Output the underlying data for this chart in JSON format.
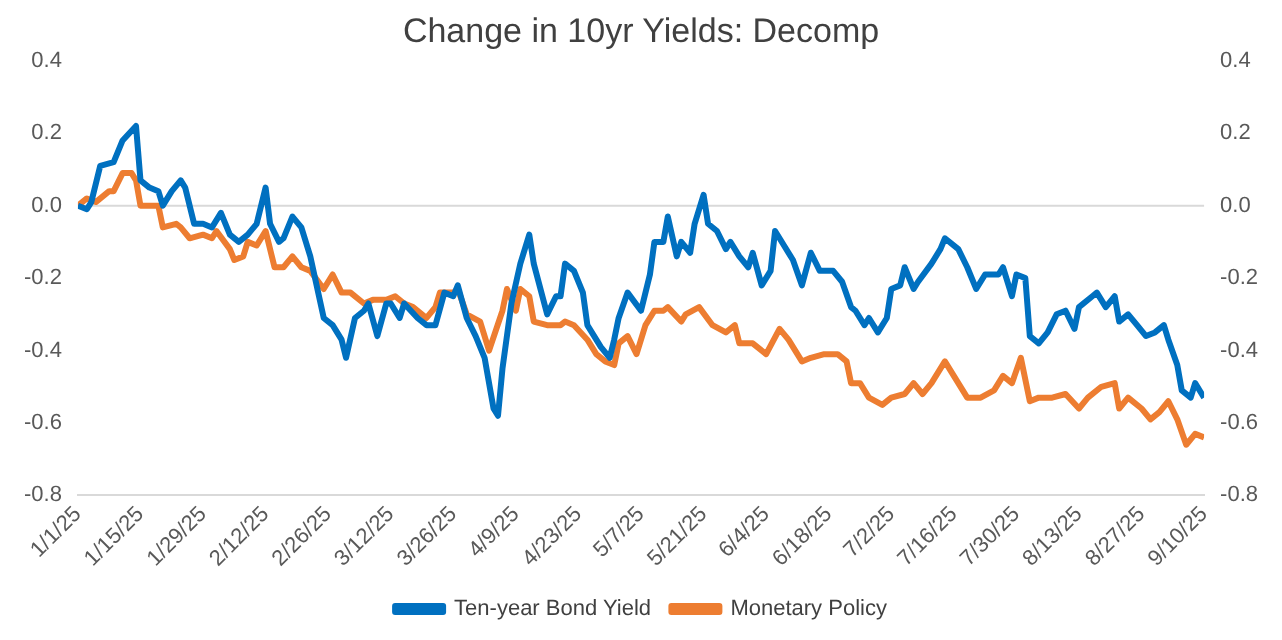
{
  "chart_data": {
    "type": "line",
    "title": "Change in 10yr Yields: Decomp",
    "xlim": [
      "--01-01",
      "--09-10"
    ],
    "xticks": [
      {
        "value": "--01-01",
        "label": "1/1/25"
      },
      {
        "value": "--01-15",
        "label": "1/15/25"
      },
      {
        "value": "--01-29",
        "label": "1/29/25"
      },
      {
        "value": "--02-12",
        "label": "2/12/25"
      },
      {
        "value": "--02-26",
        "label": "2/26/25"
      },
      {
        "value": "--03-12",
        "label": "3/12/25"
      },
      {
        "value": "--03-26",
        "label": "3/26/25"
      },
      {
        "value": "--04-09",
        "label": "4/9/25"
      },
      {
        "value": "--04-23",
        "label": "4/23/25"
      },
      {
        "value": "--05-07",
        "label": "5/7/25"
      },
      {
        "value": "--05-21",
        "label": "5/21/25"
      },
      {
        "value": "--06-04",
        "label": "6/4/25"
      },
      {
        "value": "--06-18",
        "label": "6/18/25"
      },
      {
        "value": "--07-02",
        "label": "7/2/25"
      },
      {
        "value": "--07-16",
        "label": "7/16/25"
      },
      {
        "value": "--07-30",
        "label": "7/30/25"
      },
      {
        "value": "--08-13",
        "label": "8/13/25"
      },
      {
        "value": "--08-27",
        "label": "8/27/25"
      },
      {
        "value": "--09-10",
        "label": "9/10/25"
      }
    ],
    "ylim": [
      -0.8,
      0.4
    ],
    "yticks": [
      {
        "value": -0.8,
        "label": "-0.8"
      },
      {
        "value": -0.6,
        "label": "-0.6"
      },
      {
        "value": -0.4,
        "label": "-0.4"
      },
      {
        "value": -0.2,
        "label": "-0.2"
      },
      {
        "value": 0,
        "label": "0.0"
      },
      {
        "value": 0.2,
        "label": "0.2"
      },
      {
        "value": 0.4,
        "label": "0.4"
      }
    ],
    "y2lim": [
      -0.8,
      0.4
    ],
    "y2ticks": [
      {
        "value": -0.8,
        "label": "-0.8"
      },
      {
        "value": -0.6,
        "label": "-0.6"
      },
      {
        "value": -0.4,
        "label": "-0.4"
      },
      {
        "value": -0.2,
        "label": "-0.2"
      },
      {
        "value": 0,
        "label": "0.0"
      },
      {
        "value": 0.2,
        "label": "0.2"
      },
      {
        "value": 0.4,
        "label": "0.4"
      }
    ],
    "ref_lines": [
      {
        "axis": "y",
        "value": 0,
        "color": "#d9d9d9"
      }
    ],
    "legend": "bottom",
    "marker": "none",
    "line_style": "solid",
    "series": [
      {
        "name": "Ten-year Bond Yield",
        "color": "#0070c0",
        "x": [
          "--01-01",
          "--01-03",
          "--01-04",
          "--01-06",
          "--01-09",
          "--01-11",
          "--01-14",
          "--01-15",
          "--01-17",
          "--01-19",
          "--01-20",
          "--01-22",
          "--01-24",
          "--01-25",
          "--01-27",
          "--01-29",
          "--01-31",
          "--02-02",
          "--02-04",
          "--02-06",
          "--02-08",
          "--02-10",
          "--02-12",
          "--02-13",
          "--02-15",
          "--02-16",
          "--02-18",
          "--02-20",
          "--02-22",
          "--02-25",
          "--02-27",
          "--03-01",
          "--03-02",
          "--03-04",
          "--03-06",
          "--03-07",
          "--03-09",
          "--03-11",
          "--03-12",
          "--03-14",
          "--03-15",
          "--03-18",
          "--03-20",
          "--03-22",
          "--03-24",
          "--03-26",
          "--03-27",
          "--03-29",
          "--03-31",
          "--04-02",
          "--04-04",
          "--04-05",
          "--04-06",
          "--04-08",
          "--04-10",
          "--04-12",
          "--04-13",
          "--04-16",
          "--04-18",
          "--04-19",
          "--04-20",
          "--04-22",
          "--04-24",
          "--04-25",
          "--04-28",
          "--04-30",
          "--05-01",
          "--05-02",
          "--05-04",
          "--05-07",
          "--05-09",
          "--05-10",
          "--05-12",
          "--05-13",
          "--05-15",
          "--05-16",
          "--05-18",
          "--05-19",
          "--05-21",
          "--05-22",
          "--05-24",
          "--05-26",
          "--05-27",
          "--05-29",
          "--05-31",
          "--06-01",
          "--06-03",
          "--06-05",
          "--06-06",
          "--06-08",
          "--06-10",
          "--06-12",
          "--06-14",
          "--06-16",
          "--06-19",
          "--06-21",
          "--06-23",
          "--06-24",
          "--06-26",
          "--06-27",
          "--06-29",
          "--07-01",
          "--07-02",
          "--07-04",
          "--07-05",
          "--07-07",
          "--07-08",
          "--07-11",
          "--07-13",
          "--07-14",
          "--07-17",
          "--07-19",
          "--07-21",
          "--07-23",
          "--07-26",
          "--07-27",
          "--07-29",
          "--07-30",
          "--08-01",
          "--08-02",
          "--08-04",
          "--08-06",
          "--08-08",
          "--08-10",
          "--08-12",
          "--08-13",
          "--08-16",
          "--08-17",
          "--08-19",
          "--08-21",
          "--08-22",
          "--08-24",
          "--08-26",
          "--08-28",
          "--08-30",
          "--09-01",
          "--09-02",
          "--09-04",
          "--09-05",
          "--09-07",
          "--09-08",
          "--09-10"
        ],
        "values": [
          0,
          -0.01,
          0.01,
          0.11,
          0.12,
          0.18,
          0.22,
          0.07,
          0.05,
          0.04,
          0,
          0.04,
          0.07,
          0.05,
          -0.05,
          -0.05,
          -0.06,
          -0.02,
          -0.08,
          -0.1,
          -0.08,
          -0.05,
          0.05,
          -0.05,
          -0.1,
          -0.09,
          -0.03,
          -0.06,
          -0.14,
          -0.31,
          -0.33,
          -0.37,
          -0.42,
          -0.31,
          -0.29,
          -0.27,
          -0.36,
          -0.27,
          -0.27,
          -0.31,
          -0.27,
          -0.31,
          -0.33,
          -0.33,
          -0.24,
          -0.25,
          -0.22,
          -0.31,
          -0.36,
          -0.42,
          -0.56,
          -0.58,
          -0.45,
          -0.27,
          -0.16,
          -0.08,
          -0.16,
          -0.3,
          -0.25,
          -0.25,
          -0.16,
          -0.18,
          -0.24,
          -0.33,
          -0.39,
          -0.42,
          -0.37,
          -0.31,
          -0.24,
          -0.29,
          -0.19,
          -0.1,
          -0.1,
          -0.03,
          -0.14,
          -0.1,
          -0.13,
          -0.05,
          0.03,
          -0.05,
          -0.07,
          -0.12,
          -0.1,
          -0.14,
          -0.17,
          -0.13,
          -0.22,
          -0.18,
          -0.07,
          -0.11,
          -0.15,
          -0.22,
          -0.13,
          -0.18,
          -0.18,
          -0.21,
          -0.28,
          -0.29,
          -0.33,
          -0.31,
          -0.35,
          -0.31,
          -0.23,
          -0.22,
          -0.17,
          -0.23,
          -0.21,
          -0.16,
          -0.12,
          -0.09,
          -0.12,
          -0.17,
          -0.23,
          -0.19,
          -0.19,
          -0.17,
          -0.25,
          -0.19,
          -0.2,
          -0.36,
          -0.38,
          -0.35,
          -0.3,
          -0.29,
          -0.34,
          -0.28,
          -0.25,
          -0.24,
          -0.28,
          -0.25,
          -0.32,
          -0.3,
          -0.33,
          -0.36,
          -0.35,
          -0.33,
          -0.37,
          -0.44,
          -0.51,
          -0.53,
          -0.49,
          -0.53
        ]
      },
      {
        "name": "Monetary Policy",
        "color": "#ed7d31",
        "x": [
          "--01-01",
          "--01-03",
          "--01-05",
          "--01-08",
          "--01-09",
          "--01-11",
          "--01-13",
          "--01-14",
          "--01-15",
          "--01-17",
          "--01-19",
          "--01-20",
          "--01-23",
          "--01-24",
          "--01-26",
          "--01-29",
          "--01-31",
          "--02-01",
          "--02-04",
          "--02-05",
          "--02-07",
          "--02-08",
          "--02-10",
          "--02-12",
          "--02-14",
          "--02-16",
          "--02-18",
          "--02-20",
          "--02-22",
          "--02-25",
          "--02-27",
          "--03-01",
          "--03-03",
          "--03-06",
          "--03-08",
          "--03-11",
          "--03-13",
          "--03-15",
          "--03-17",
          "--03-20",
          "--03-22",
          "--03-23",
          "--03-26",
          "--03-27",
          "--03-29",
          "--04-01",
          "--04-03",
          "--04-06",
          "--04-07",
          "--04-09",
          "--04-10",
          "--04-12",
          "--04-13",
          "--04-16",
          "--04-19",
          "--04-20",
          "--04-22",
          "--04-25",
          "--04-27",
          "--04-29",
          "--05-01",
          "--05-02",
          "--05-04",
          "--05-06",
          "--05-08",
          "--05-10",
          "--05-12",
          "--05-13",
          "--05-16",
          "--05-17",
          "--05-20",
          "--05-23",
          "--05-26",
          "--05-28",
          "--05-29",
          "--06-01",
          "--06-04",
          "--06-07",
          "--06-09",
          "--06-12",
          "--06-14",
          "--06-17",
          "--06-20",
          "--06-22",
          "--06-23",
          "--06-25",
          "--06-27",
          "--06-30",
          "--07-02",
          "--07-05",
          "--07-07",
          "--07-09",
          "--07-11",
          "--07-14",
          "--07-16",
          "--07-19",
          "--07-22",
          "--07-25",
          "--07-27",
          "--07-29",
          "--07-31",
          "--08-02",
          "--08-04",
          "--08-07",
          "--08-10",
          "--08-13",
          "--08-15",
          "--08-18",
          "--08-21",
          "--08-22",
          "--08-24",
          "--08-27",
          "--08-29",
          "--08-31",
          "--09-02",
          "--09-04",
          "--09-06",
          "--09-08",
          "--09-10"
        ],
        "values": [
          0,
          0.02,
          0.01,
          0.04,
          0.04,
          0.09,
          0.09,
          0.07,
          0,
          0,
          0,
          -0.06,
          -0.05,
          -0.06,
          -0.09,
          -0.08,
          -0.09,
          -0.07,
          -0.12,
          -0.15,
          -0.14,
          -0.1,
          -0.11,
          -0.07,
          -0.17,
          -0.17,
          -0.14,
          -0.17,
          -0.18,
          -0.23,
          -0.19,
          -0.24,
          -0.24,
          -0.27,
          -0.26,
          -0.26,
          -0.25,
          -0.27,
          -0.28,
          -0.31,
          -0.28,
          -0.24,
          -0.24,
          -0.23,
          -0.3,
          -0.32,
          -0.4,
          -0.29,
          -0.23,
          -0.29,
          -0.23,
          -0.25,
          -0.32,
          -0.33,
          -0.33,
          -0.32,
          -0.33,
          -0.37,
          -0.41,
          -0.43,
          -0.44,
          -0.38,
          -0.36,
          -0.41,
          -0.33,
          -0.29,
          -0.29,
          -0.28,
          -0.32,
          -0.3,
          -0.28,
          -0.33,
          -0.35,
          -0.33,
          -0.38,
          -0.38,
          -0.41,
          -0.34,
          -0.37,
          -0.43,
          -0.42,
          -0.41,
          -0.41,
          -0.43,
          -0.49,
          -0.49,
          -0.53,
          -0.55,
          -0.53,
          -0.52,
          -0.49,
          -0.52,
          -0.49,
          -0.43,
          -0.47,
          -0.53,
          -0.53,
          -0.51,
          -0.47,
          -0.49,
          -0.42,
          -0.54,
          -0.53,
          -0.53,
          -0.52,
          -0.56,
          -0.53,
          -0.5,
          -0.49,
          -0.56,
          -0.53,
          -0.56,
          -0.59,
          -0.57,
          -0.54,
          -0.59,
          -0.66,
          -0.63,
          -0.64
        ]
      }
    ]
  }
}
